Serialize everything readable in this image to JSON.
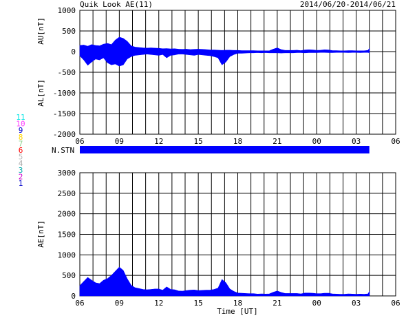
{
  "header": {
    "title": "Quik Look AE(11)",
    "date_range": "2014/06/20-2014/06/21"
  },
  "colors": {
    "fill": "#0000ff",
    "grid": "#000000",
    "background": "#ffffff"
  },
  "station_legend": [
    {
      "label": "11",
      "color": "#00e5e5"
    },
    {
      "label": "10",
      "color": "#ff44ff"
    },
    {
      "label": "9",
      "color": "#0000cc"
    },
    {
      "label": "8",
      "color": "#ffd700"
    },
    {
      "label": "7",
      "color": "#8fd18f"
    },
    {
      "label": "6",
      "color": "#ff0000"
    },
    {
      "label": "5",
      "color": "#bbbbbb"
    },
    {
      "label": "4",
      "color": "#aaaaaa"
    },
    {
      "label": "3",
      "color": "#00aaaa"
    },
    {
      "label": "2",
      "color": "#cc00cc"
    },
    {
      "label": "1",
      "color": "#0000cc"
    }
  ],
  "nstn": {
    "label": "N.STN",
    "start_hour": 0,
    "end_hour": 22
  },
  "chart_data": [
    {
      "type": "area",
      "name": "AU/AL panel",
      "ylabel_upper": "AU[nT]",
      "ylabel_lower": "AL[nT]",
      "ylim": [
        -2000,
        1000
      ],
      "yticks": [
        1000,
        500,
        0,
        -500,
        -1000,
        -1500,
        -2000
      ],
      "xlim_hours": [
        0,
        24
      ],
      "xtick_labels": [
        "06",
        "09",
        "12",
        "15",
        "18",
        "21",
        "00",
        "03",
        "06"
      ],
      "grid": true,
      "hours": [
        0,
        0.3,
        0.6,
        0.9,
        1.2,
        1.5,
        1.8,
        2.1,
        2.4,
        2.7,
        3.0,
        3.3,
        3.6,
        3.9,
        4.2,
        4.5,
        4.8,
        5.1,
        5.4,
        5.7,
        6.0,
        6.3,
        6.6,
        6.9,
        7.2,
        7.5,
        7.8,
        8.1,
        8.4,
        8.7,
        9.0,
        9.3,
        9.6,
        9.9,
        10.2,
        10.5,
        10.8,
        11.1,
        11.4,
        11.7,
        12.0,
        12.3,
        12.6,
        12.9,
        13.2,
        13.5,
        13.8,
        14.1,
        14.4,
        14.7,
        15.0,
        15.3,
        15.6,
        15.9,
        16.2,
        16.5,
        16.8,
        17.1,
        17.4,
        17.7,
        18.0,
        18.3,
        18.6,
        18.9,
        19.2,
        19.5,
        19.8,
        20.1,
        20.4,
        20.7,
        21.0,
        21.3,
        21.6,
        21.9,
        22.0
      ],
      "au": [
        150,
        160,
        130,
        170,
        150,
        140,
        180,
        200,
        170,
        280,
        350,
        320,
        250,
        140,
        110,
        100,
        90,
        85,
        90,
        85,
        80,
        70,
        75,
        65,
        70,
        60,
        55,
        60,
        50,
        55,
        60,
        55,
        50,
        40,
        40,
        35,
        30,
        35,
        35,
        30,
        30,
        25,
        25,
        25,
        25,
        20,
        20,
        20,
        20,
        60,
        90,
        50,
        30,
        30,
        30,
        35,
        25,
        40,
        45,
        40,
        30,
        35,
        45,
        40,
        25,
        25,
        20,
        20,
        25,
        25,
        20,
        20,
        20,
        30,
        80
      ],
      "al": [
        -100,
        -200,
        -330,
        -250,
        -180,
        -200,
        -150,
        -270,
        -320,
        -300,
        -350,
        -320,
        -180,
        -120,
        -90,
        -80,
        -70,
        -60,
        -70,
        -80,
        -90,
        -70,
        -150,
        -90,
        -80,
        -60,
        -60,
        -70,
        -80,
        -90,
        -70,
        -80,
        -90,
        -100,
        -120,
        -150,
        -320,
        -250,
        -120,
        -70,
        -40,
        -40,
        -35,
        -30,
        -30,
        -25,
        -30,
        -25,
        -30,
        -30,
        -30,
        -35,
        -30,
        -30,
        -30,
        -25,
        -25,
        -30,
        -25,
        -25,
        -25,
        -20,
        -20,
        -25,
        -25,
        -20,
        -20,
        -20,
        -25,
        -20,
        -20,
        -25,
        -20,
        -20,
        -30
      ]
    },
    {
      "type": "area",
      "name": "AE panel",
      "ylabel": "AE[nT]",
      "xlabel": "Time [UT]",
      "ylim": [
        0,
        3000
      ],
      "yticks": [
        3000,
        2500,
        2000,
        1500,
        1000,
        500,
        0
      ],
      "xlim_hours": [
        0,
        24
      ],
      "xtick_labels": [
        "06",
        "09",
        "12",
        "15",
        "18",
        "21",
        "00",
        "03",
        "06"
      ],
      "grid": true,
      "hours": [
        0,
        0.3,
        0.6,
        0.9,
        1.2,
        1.5,
        1.8,
        2.1,
        2.4,
        2.7,
        3.0,
        3.3,
        3.6,
        3.9,
        4.2,
        4.5,
        4.8,
        5.1,
        5.4,
        5.7,
        6.0,
        6.3,
        6.6,
        6.9,
        7.2,
        7.5,
        7.8,
        8.1,
        8.4,
        8.7,
        9.0,
        9.3,
        9.6,
        9.9,
        10.2,
        10.5,
        10.8,
        11.1,
        11.4,
        11.7,
        12.0,
        12.3,
        12.6,
        12.9,
        13.2,
        13.5,
        13.8,
        14.1,
        14.4,
        14.7,
        15.0,
        15.3,
        15.6,
        15.9,
        16.2,
        16.5,
        16.8,
        17.1,
        17.4,
        17.7,
        18.0,
        18.3,
        18.6,
        18.9,
        19.2,
        19.5,
        19.8,
        20.1,
        20.4,
        20.7,
        21.0,
        21.3,
        21.6,
        21.9,
        22.0
      ],
      "values": [
        250,
        350,
        450,
        380,
        320,
        300,
        380,
        420,
        500,
        600,
        700,
        620,
        420,
        260,
        200,
        180,
        160,
        150,
        160,
        170,
        170,
        140,
        220,
        160,
        150,
        120,
        115,
        130,
        140,
        145,
        130,
        135,
        140,
        140,
        160,
        190,
        400,
        320,
        170,
        110,
        70,
        65,
        60,
        55,
        55,
        45,
        50,
        45,
        50,
        90,
        120,
        85,
        60,
        60,
        60,
        60,
        50,
        70,
        70,
        65,
        55,
        55,
        65,
        65,
        50,
        45,
        40,
        40,
        50,
        45,
        40,
        45,
        40,
        50,
        110
      ]
    }
  ],
  "axis_common": {
    "xlabel": "Time [UT]"
  }
}
